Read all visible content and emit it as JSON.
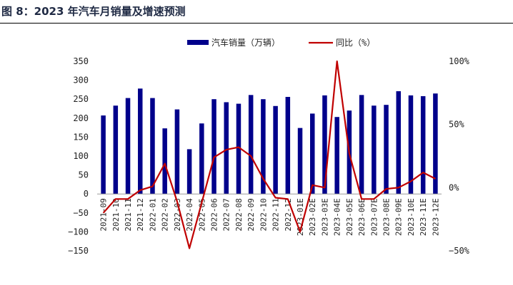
{
  "header": {
    "title": "图 8：2023 年汽车月销量及增速预测"
  },
  "colors": {
    "bar": "#00008b",
    "line": "#c00000",
    "axis": "#9a9a9a"
  },
  "chart_data": {
    "type": "bar",
    "title": "",
    "xlabel": "",
    "ylabel": "",
    "categories": [
      "2021-09",
      "2021-10",
      "2021-11",
      "2021-12",
      "2022-01",
      "2022-02",
      "2022-03",
      "2022-04",
      "2022-05",
      "2022-06",
      "2022-07",
      "2022-08",
      "2022-09",
      "2022-10",
      "2022-11",
      "2022-12",
      "2023-01E",
      "2023-02E",
      "2023-03E",
      "2023-04E",
      "2023-05E",
      "2023-06E",
      "2023-07E",
      "2023-08E",
      "2023-09E",
      "2023-10E",
      "2023-11E",
      "2023-12E"
    ],
    "series": [
      {
        "name": "汽车销量（万辆）",
        "type": "bar",
        "axis": "left",
        "values": [
          207,
          233,
          253,
          278,
          253,
          173,
          223,
          118,
          186,
          250,
          242,
          238,
          261,
          250,
          232,
          256,
          174,
          212,
          260,
          203,
          220,
          261,
          233,
          235,
          271,
          260,
          258,
          265
        ]
      },
      {
        "name": "同比（%）",
        "type": "line",
        "axis": "right",
        "values": [
          -20,
          -9,
          -9,
          -2,
          1,
          19,
          -11,
          -48,
          -12,
          24,
          30,
          32,
          25,
          7,
          -8,
          -9,
          -35,
          2,
          0,
          100,
          27,
          -9,
          -9,
          -1,
          0,
          5,
          12,
          7
        ]
      }
    ],
    "ylim": [
      -150,
      350
    ],
    "yticks": [
      -150,
      -100,
      -50,
      0,
      50,
      100,
      150,
      200,
      250,
      300,
      350
    ],
    "ylim_right": [
      -50,
      100
    ],
    "yticks_right": [
      "-50%",
      "0%",
      "50%",
      "100%"
    ],
    "legend_placement": "top-center",
    "grid": false
  }
}
